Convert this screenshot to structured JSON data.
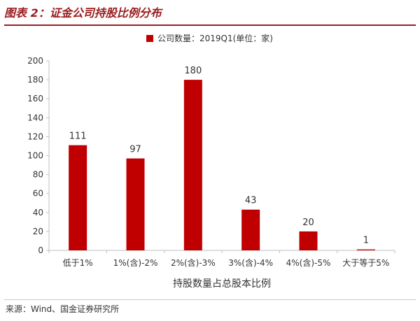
{
  "header": {
    "title": "图表 2：证金公司持股比例分布"
  },
  "footer": {
    "source": "来源：Wind、国金证券研究所"
  },
  "colors": {
    "bar": "#c00000",
    "title": "#9b1b1e"
  },
  "chart_data": {
    "type": "bar",
    "title": "",
    "categories": [
      "低于1%",
      "1%(含)-2%",
      "2%(含)-3%",
      "3%(含)-4%",
      "4%(含)-5%",
      "大于等于5%"
    ],
    "series": [
      {
        "name": "公司数量：2019Q1(单位：家)",
        "values": [
          111,
          97,
          180,
          43,
          20,
          1
        ]
      }
    ],
    "xlabel": "持股数量占总股本比例",
    "ylabel": "",
    "ylim": [
      0,
      200
    ],
    "yticks": [
      0,
      20,
      40,
      60,
      80,
      100,
      120,
      140,
      160,
      180,
      200
    ],
    "grid": false,
    "legend": "top-center"
  }
}
